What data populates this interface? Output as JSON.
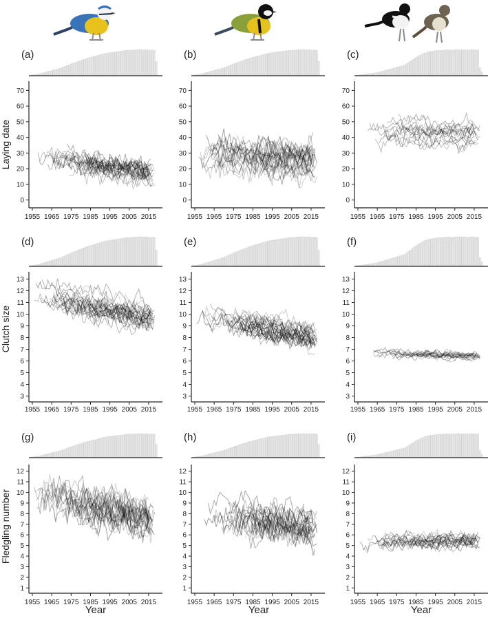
{
  "figure": {
    "xlabel": "Year",
    "species_icons": [
      "blue-tit-icon",
      "great-tit-icon",
      "flycatcher-pair-icon"
    ],
    "colors": {
      "axis": "#222222",
      "bars": "#c8c8c8",
      "lines": "#000000",
      "blue_tit_yellow": "#e8c21c",
      "blue_tit_blue": "#3a74b8",
      "great_tit_green": "#8aa03a"
    }
  },
  "chart_data": [
    {
      "panel": "(a)",
      "type": "line",
      "ylabel": "Laying date",
      "xlim": [
        1955,
        2020
      ],
      "ylim": [
        -5,
        75
      ],
      "yticks": [
        0,
        10,
        20,
        30,
        40,
        50,
        60,
        70
      ],
      "xticks": [
        1955,
        1965,
        1975,
        1985,
        1995,
        2005,
        2015
      ],
      "trend": {
        "start_year": 1957,
        "end_year": 2018,
        "center_start": 27,
        "center_end": 17,
        "spread": 10,
        "n_series": 24,
        "noise": 5
      },
      "sample_histogram": {
        "start_year": 1955,
        "end_year": 2019,
        "relative_counts": [
          0.03,
          0.04,
          0.05,
          0.06,
          0.08,
          0.1,
          0.12,
          0.14,
          0.16,
          0.18,
          0.2,
          0.22,
          0.24,
          0.26,
          0.28,
          0.3,
          0.33,
          0.36,
          0.39,
          0.42,
          0.45,
          0.48,
          0.5,
          0.53,
          0.56,
          0.58,
          0.61,
          0.63,
          0.66,
          0.68,
          0.7,
          0.72,
          0.74,
          0.76,
          0.78,
          0.8,
          0.82,
          0.84,
          0.86,
          0.87,
          0.88,
          0.89,
          0.9,
          0.91,
          0.92,
          0.93,
          0.94,
          0.95,
          0.96,
          0.97,
          0.97,
          0.98,
          0.98,
          0.99,
          0.99,
          1.0,
          1.0,
          0.99,
          0.99,
          1.0,
          0.98,
          0.98,
          0.99,
          0.97,
          0.55
        ]
      }
    },
    {
      "panel": "(b)",
      "type": "line",
      "ylabel": "",
      "xlim": [
        1955,
        2020
      ],
      "ylim": [
        -5,
        75
      ],
      "yticks": [
        0,
        10,
        20,
        30,
        40,
        50,
        60,
        70
      ],
      "xticks": [
        1955,
        1965,
        1975,
        1985,
        1995,
        2005,
        2015
      ],
      "trend": {
        "start_year": 1957,
        "end_year": 2018,
        "center_start": 30,
        "center_end": 25,
        "spread": 18,
        "n_series": 28,
        "noise": 6
      },
      "sample_histogram": {
        "start_year": 1955,
        "end_year": 2019,
        "relative_counts": [
          0.03,
          0.04,
          0.05,
          0.06,
          0.08,
          0.1,
          0.12,
          0.14,
          0.16,
          0.18,
          0.2,
          0.22,
          0.24,
          0.26,
          0.28,
          0.3,
          0.33,
          0.36,
          0.39,
          0.42,
          0.45,
          0.48,
          0.5,
          0.53,
          0.56,
          0.58,
          0.61,
          0.63,
          0.66,
          0.68,
          0.7,
          0.72,
          0.74,
          0.76,
          0.78,
          0.8,
          0.82,
          0.84,
          0.86,
          0.87,
          0.88,
          0.89,
          0.9,
          0.91,
          0.92,
          0.93,
          0.94,
          0.95,
          0.96,
          0.97,
          0.97,
          0.98,
          0.98,
          0.99,
          0.99,
          1.0,
          1.0,
          0.99,
          0.99,
          1.0,
          0.98,
          0.98,
          0.99,
          0.97,
          0.55
        ]
      }
    },
    {
      "panel": "(c)",
      "type": "line",
      "ylabel": "",
      "xlim": [
        1955,
        2020
      ],
      "ylim": [
        -5,
        75
      ],
      "yticks": [
        0,
        10,
        20,
        30,
        40,
        50,
        60,
        70
      ],
      "xticks": [
        1955,
        1965,
        1975,
        1985,
        1995,
        2005,
        2015
      ],
      "trend": {
        "start_year": 1960,
        "end_year": 2018,
        "center_start": 45,
        "center_end": 42,
        "spread": 12,
        "n_series": 16,
        "noise": 4
      },
      "sample_histogram": {
        "start_year": 1955,
        "end_year": 2019,
        "relative_counts": [
          0.02,
          0.03,
          0.04,
          0.05,
          0.06,
          0.07,
          0.08,
          0.09,
          0.1,
          0.11,
          0.12,
          0.14,
          0.16,
          0.18,
          0.2,
          0.22,
          0.24,
          0.26,
          0.28,
          0.3,
          0.32,
          0.34,
          0.36,
          0.38,
          0.4,
          0.45,
          0.5,
          0.55,
          0.6,
          0.65,
          0.7,
          0.74,
          0.78,
          0.82,
          0.85,
          0.88,
          0.9,
          0.92,
          0.93,
          0.94,
          0.95,
          0.96,
          0.97,
          0.97,
          0.98,
          0.98,
          0.99,
          0.99,
          0.98,
          0.98,
          0.99,
          1.0,
          1.0,
          0.99,
          0.99,
          1.0,
          0.99,
          0.98,
          0.99,
          1.0,
          0.99,
          0.98,
          0.99,
          0.3,
          0.15
        ]
      }
    },
    {
      "panel": "(d)",
      "type": "line",
      "ylabel": "Clutch size",
      "xlim": [
        1955,
        2020
      ],
      "ylim": [
        2.5,
        13.5
      ],
      "yticks": [
        3,
        4,
        5,
        6,
        7,
        8,
        9,
        10,
        11,
        12,
        13
      ],
      "xticks": [
        1955,
        1965,
        1975,
        1985,
        1995,
        2005,
        2015
      ],
      "trend": {
        "start_year": 1956,
        "end_year": 2018,
        "center_start": 11.6,
        "center_end": 9.6,
        "spread": 2.2,
        "n_series": 26,
        "noise": 0.6
      },
      "sample_histogram": {
        "start_year": 1955,
        "end_year": 2019,
        "relative_counts": [
          0.03,
          0.04,
          0.05,
          0.06,
          0.08,
          0.1,
          0.12,
          0.14,
          0.16,
          0.18,
          0.2,
          0.22,
          0.24,
          0.26,
          0.28,
          0.3,
          0.33,
          0.36,
          0.39,
          0.42,
          0.45,
          0.48,
          0.5,
          0.53,
          0.56,
          0.58,
          0.61,
          0.63,
          0.66,
          0.68,
          0.7,
          0.72,
          0.74,
          0.76,
          0.78,
          0.8,
          0.82,
          0.84,
          0.86,
          0.87,
          0.88,
          0.89,
          0.9,
          0.91,
          0.92,
          0.93,
          0.94,
          0.95,
          0.96,
          0.97,
          0.97,
          0.98,
          0.98,
          0.99,
          0.99,
          1.0,
          1.0,
          0.99,
          0.99,
          1.0,
          0.98,
          0.98,
          0.99,
          0.97,
          0.55
        ]
      }
    },
    {
      "panel": "(e)",
      "type": "line",
      "ylabel": "",
      "xlim": [
        1955,
        2020
      ],
      "ylim": [
        2.5,
        13.5
      ],
      "yticks": [
        3,
        4,
        5,
        6,
        7,
        8,
        9,
        10,
        11,
        12,
        13
      ],
      "xticks": [
        1955,
        1965,
        1975,
        1985,
        1995,
        2005,
        2015
      ],
      "trend": {
        "start_year": 1956,
        "end_year": 2018,
        "center_start": 10.0,
        "center_end": 8.0,
        "spread": 1.6,
        "n_series": 28,
        "noise": 0.6
      },
      "sample_histogram": {
        "start_year": 1955,
        "end_year": 2019,
        "relative_counts": [
          0.03,
          0.04,
          0.05,
          0.06,
          0.08,
          0.1,
          0.12,
          0.14,
          0.16,
          0.18,
          0.2,
          0.22,
          0.24,
          0.26,
          0.28,
          0.3,
          0.33,
          0.36,
          0.39,
          0.42,
          0.45,
          0.48,
          0.5,
          0.53,
          0.56,
          0.58,
          0.61,
          0.63,
          0.66,
          0.68,
          0.7,
          0.72,
          0.74,
          0.76,
          0.78,
          0.8,
          0.82,
          0.84,
          0.86,
          0.87,
          0.88,
          0.89,
          0.9,
          0.91,
          0.92,
          0.93,
          0.94,
          0.95,
          0.96,
          0.97,
          0.97,
          0.98,
          0.98,
          0.99,
          0.99,
          1.0,
          1.0,
          0.99,
          0.99,
          1.0,
          0.98,
          0.98,
          0.99,
          0.97,
          0.55
        ]
      }
    },
    {
      "panel": "(f)",
      "type": "line",
      "ylabel": "",
      "xlim": [
        1955,
        2020
      ],
      "ylim": [
        2.5,
        13.5
      ],
      "yticks": [
        3,
        4,
        5,
        6,
        7,
        8,
        9,
        10,
        11,
        12,
        13
      ],
      "xticks": [
        1955,
        1965,
        1975,
        1985,
        1995,
        2005,
        2015
      ],
      "trend": {
        "start_year": 1962,
        "end_year": 2018,
        "center_start": 6.6,
        "center_end": 6.4,
        "spread": 0.5,
        "n_series": 16,
        "noise": 0.25
      },
      "sample_histogram": {
        "start_year": 1955,
        "end_year": 2019,
        "relative_counts": [
          0.02,
          0.03,
          0.04,
          0.05,
          0.06,
          0.07,
          0.08,
          0.09,
          0.1,
          0.11,
          0.12,
          0.14,
          0.16,
          0.18,
          0.2,
          0.22,
          0.24,
          0.26,
          0.28,
          0.3,
          0.32,
          0.34,
          0.36,
          0.38,
          0.4,
          0.45,
          0.5,
          0.55,
          0.6,
          0.65,
          0.7,
          0.74,
          0.78,
          0.82,
          0.85,
          0.88,
          0.9,
          0.92,
          0.93,
          0.94,
          0.95,
          0.96,
          0.97,
          0.97,
          0.98,
          0.98,
          0.99,
          0.99,
          0.98,
          0.98,
          0.99,
          1.0,
          1.0,
          0.99,
          0.99,
          1.0,
          0.99,
          0.98,
          0.99,
          1.0,
          0.99,
          0.98,
          0.99,
          0.3,
          0.15
        ]
      }
    },
    {
      "panel": "(g)",
      "type": "line",
      "ylabel": "Fledgling number",
      "xlim": [
        1955,
        2020
      ],
      "ylim": [
        0.5,
        12.5
      ],
      "yticks": [
        1,
        2,
        3,
        4,
        5,
        6,
        7,
        8,
        9,
        10,
        11,
        12
      ],
      "xticks": [
        1955,
        1965,
        1975,
        1985,
        1995,
        2005,
        2015
      ],
      "trend": {
        "start_year": 1956,
        "end_year": 2018,
        "center_start": 9.5,
        "center_end": 7.2,
        "spread": 2.4,
        "n_series": 26,
        "noise": 1.2
      },
      "sample_histogram": {
        "start_year": 1955,
        "end_year": 2019,
        "relative_counts": [
          0.03,
          0.04,
          0.05,
          0.06,
          0.08,
          0.1,
          0.12,
          0.14,
          0.16,
          0.18,
          0.2,
          0.22,
          0.24,
          0.26,
          0.28,
          0.3,
          0.33,
          0.36,
          0.39,
          0.42,
          0.45,
          0.48,
          0.5,
          0.53,
          0.56,
          0.58,
          0.61,
          0.63,
          0.66,
          0.68,
          0.7,
          0.72,
          0.74,
          0.76,
          0.78,
          0.8,
          0.82,
          0.84,
          0.86,
          0.87,
          0.88,
          0.89,
          0.9,
          0.91,
          0.92,
          0.93,
          0.94,
          0.95,
          0.96,
          0.97,
          0.97,
          0.98,
          0.98,
          0.99,
          0.99,
          1.0,
          1.0,
          0.99,
          0.99,
          1.0,
          0.98,
          0.98,
          0.99,
          0.97,
          0.55
        ]
      }
    },
    {
      "panel": "(h)",
      "type": "line",
      "ylabel": "",
      "xlim": [
        1955,
        2020
      ],
      "ylim": [
        0.5,
        12.5
      ],
      "yticks": [
        1,
        2,
        3,
        4,
        5,
        6,
        7,
        8,
        9,
        10,
        11,
        12
      ],
      "xticks": [
        1955,
        1965,
        1975,
        1985,
        1995,
        2005,
        2015
      ],
      "trend": {
        "start_year": 1956,
        "end_year": 2018,
        "center_start": 7.8,
        "center_end": 6.4,
        "spread": 1.8,
        "n_series": 28,
        "noise": 1.0
      },
      "sample_histogram": {
        "start_year": 1955,
        "end_year": 2019,
        "relative_counts": [
          0.03,
          0.04,
          0.05,
          0.06,
          0.08,
          0.1,
          0.12,
          0.14,
          0.16,
          0.18,
          0.2,
          0.22,
          0.24,
          0.26,
          0.28,
          0.3,
          0.33,
          0.36,
          0.39,
          0.42,
          0.45,
          0.48,
          0.5,
          0.53,
          0.56,
          0.58,
          0.61,
          0.63,
          0.66,
          0.68,
          0.7,
          0.72,
          0.74,
          0.76,
          0.78,
          0.8,
          0.82,
          0.84,
          0.86,
          0.87,
          0.88,
          0.89,
          0.9,
          0.91,
          0.92,
          0.93,
          0.94,
          0.95,
          0.96,
          0.97,
          0.97,
          0.98,
          0.98,
          0.99,
          0.99,
          1.0,
          1.0,
          0.99,
          0.99,
          1.0,
          0.98,
          0.98,
          0.99,
          0.97,
          0.55
        ]
      }
    },
    {
      "panel": "(i)",
      "type": "line",
      "ylabel": "",
      "xlim": [
        1955,
        2020
      ],
      "ylim": [
        0.5,
        12.5
      ],
      "yticks": [
        1,
        2,
        3,
        4,
        5,
        6,
        7,
        8,
        9,
        10,
        11,
        12
      ],
      "xticks": [
        1955,
        1965,
        1975,
        1985,
        1995,
        2005,
        2015
      ],
      "trend": {
        "start_year": 1956,
        "end_year": 2018,
        "center_start": 5.4,
        "center_end": 5.4,
        "spread": 0.6,
        "n_series": 18,
        "noise": 0.5
      },
      "sample_histogram": {
        "start_year": 1955,
        "end_year": 2019,
        "relative_counts": [
          0.02,
          0.03,
          0.04,
          0.05,
          0.06,
          0.07,
          0.08,
          0.09,
          0.1,
          0.11,
          0.12,
          0.14,
          0.16,
          0.18,
          0.2,
          0.22,
          0.24,
          0.26,
          0.28,
          0.3,
          0.32,
          0.34,
          0.36,
          0.38,
          0.4,
          0.45,
          0.5,
          0.55,
          0.6,
          0.65,
          0.7,
          0.74,
          0.78,
          0.82,
          0.85,
          0.88,
          0.9,
          0.92,
          0.93,
          0.94,
          0.95,
          0.96,
          0.97,
          0.97,
          0.98,
          0.98,
          0.99,
          0.99,
          0.98,
          0.98,
          0.99,
          1.0,
          1.0,
          0.99,
          0.99,
          1.0,
          0.99,
          0.98,
          0.99,
          1.0,
          0.99,
          0.98,
          0.99,
          0.3,
          0.15
        ]
      }
    }
  ]
}
